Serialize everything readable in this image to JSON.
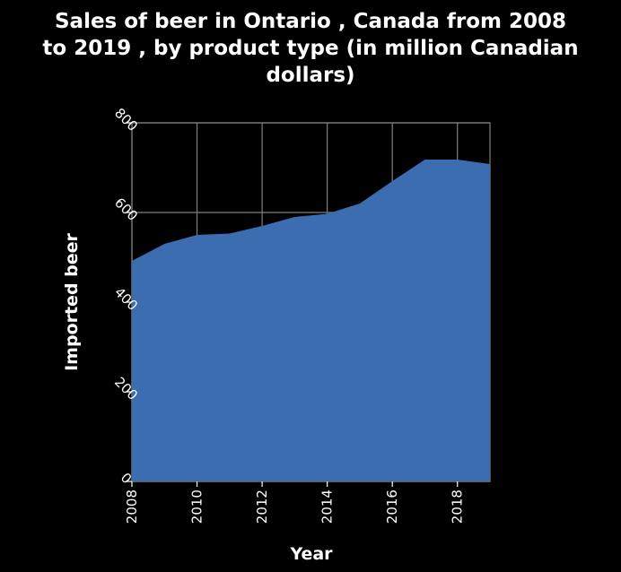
{
  "chart_data": {
    "type": "area",
    "title_lines": [
      "Sales of beer in Ontario , Canada from 2008",
      "to 2019 , by product type (in million Canadian",
      "dollars)"
    ],
    "xlabel": "Year",
    "ylabel": "Imported beer",
    "x": [
      2008,
      2009,
      2010,
      2011,
      2012,
      2013,
      2014,
      2015,
      2016,
      2017,
      2018,
      2019
    ],
    "values": [
      492,
      530,
      550,
      553,
      570,
      590,
      597,
      620,
      670,
      718,
      718,
      708
    ],
    "xlim": [
      2008,
      2019
    ],
    "ylim": [
      0,
      800
    ],
    "x_ticks": [
      "2008",
      "2010",
      "2012",
      "2014",
      "2016",
      "2018"
    ],
    "y_ticks": [
      "0",
      "200",
      "400",
      "600",
      "800"
    ],
    "grid": true,
    "colors": {
      "background": "#000000",
      "fill": "#3c6db0",
      "grid": "#808080",
      "text": "#ffffff"
    }
  }
}
